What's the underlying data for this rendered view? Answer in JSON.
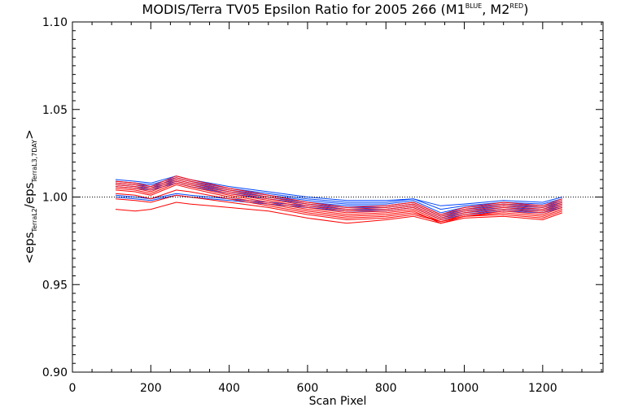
{
  "chart_data": {
    "type": "line",
    "title": {
      "main": "MODIS/Terra TV05 Epsilon Ratio for 2005 266 (M1",
      "sup1": "BLUE",
      "mid": ", M2",
      "sup2": "RED",
      "end": ")"
    },
    "xlabel": "Scan Pixel",
    "ylabel": {
      "open": "<eps",
      "sub1": "TerraL2",
      "slash": "/eps",
      "sub2": "TerraL3,7DAY",
      "close": ">"
    },
    "xlim": [
      0,
      1354
    ],
    "ylim": [
      0.9,
      1.1
    ],
    "xticks": [
      0,
      200,
      400,
      600,
      800,
      1000,
      1200
    ],
    "xtick_labels": [
      "0",
      "200",
      "400",
      "600",
      "800",
      "1000",
      "1200"
    ],
    "yticks": [
      0.9,
      0.95,
      1.0,
      1.05,
      1.1
    ],
    "ytick_labels": [
      "0.90",
      "0.95",
      "1.00",
      "1.05",
      "1.10"
    ],
    "reference_line": {
      "y": 1.0,
      "style": "dotted"
    },
    "grid": false,
    "legend": "none",
    "colors": {
      "M1": "#0044ff",
      "M2": "#ff0000"
    },
    "series": [
      {
        "color_key": "M1",
        "x": [
          110,
          160,
          200,
          265,
          300,
          400,
          500,
          600,
          700,
          800,
          870,
          940,
          1000,
          1100,
          1200,
          1250
        ],
        "y": [
          1.01,
          1.009,
          1.008,
          1.012,
          1.01,
          1.006,
          1.003,
          1.0,
          0.998,
          0.998,
          0.999,
          0.995,
          0.996,
          0.998,
          0.997,
          1.0
        ]
      },
      {
        "color_key": "M1",
        "x": [
          110,
          160,
          200,
          265,
          300,
          400,
          500,
          600,
          700,
          800,
          870,
          940,
          1000,
          1100,
          1200,
          1250
        ],
        "y": [
          1.009,
          1.008,
          1.007,
          1.011,
          1.009,
          1.005,
          1.002,
          0.999,
          0.997,
          0.997,
          0.999,
          0.993,
          0.995,
          0.997,
          0.996,
          0.999
        ]
      },
      {
        "color_key": "M1",
        "x": [
          110,
          160,
          200,
          265,
          300,
          400,
          500,
          600,
          700,
          800,
          870,
          940,
          1000,
          1100,
          1200,
          1250
        ],
        "y": [
          1.008,
          1.007,
          1.006,
          1.01,
          1.008,
          1.004,
          1.001,
          0.998,
          0.996,
          0.996,
          0.998,
          0.991,
          0.994,
          0.996,
          0.995,
          0.998
        ]
      },
      {
        "color_key": "M1",
        "x": [
          110,
          160,
          200,
          265,
          300,
          400,
          500,
          600,
          700,
          800,
          870,
          940,
          1000,
          1100,
          1200,
          1250
        ],
        "y": [
          1.007,
          1.006,
          1.005,
          1.009,
          1.007,
          1.003,
          1.0,
          0.997,
          0.995,
          0.995,
          0.997,
          0.99,
          0.993,
          0.995,
          0.994,
          0.997
        ]
      },
      {
        "color_key": "M1",
        "x": [
          110,
          160,
          200,
          265,
          300,
          400,
          500,
          600,
          700,
          800,
          870,
          940,
          1000,
          1100,
          1200,
          1250
        ],
        "y": [
          1.006,
          1.005,
          1.004,
          1.008,
          1.006,
          1.002,
          0.999,
          0.996,
          0.994,
          0.994,
          0.996,
          0.989,
          0.992,
          0.994,
          0.993,
          0.996
        ]
      },
      {
        "color_key": "M1",
        "x": [
          110,
          160,
          200,
          265,
          300,
          400,
          500,
          600,
          700,
          800,
          870,
          940,
          1000,
          1100,
          1200,
          1250
        ],
        "y": [
          1.001,
          1.0,
          0.999,
          1.002,
          1.001,
          0.999,
          0.997,
          0.995,
          0.993,
          0.993,
          0.995,
          0.988,
          0.991,
          0.993,
          0.992,
          0.995
        ]
      },
      {
        "color_key": "M1",
        "x": [
          110,
          160,
          200,
          265,
          300,
          400,
          500,
          600,
          700,
          800,
          870,
          940,
          1000,
          1100,
          1200,
          1250
        ],
        "y": [
          1.0,
          0.999,
          0.998,
          1.001,
          1.0,
          0.998,
          0.996,
          0.994,
          0.992,
          0.992,
          0.994,
          0.987,
          0.99,
          0.992,
          0.991,
          0.994
        ]
      },
      {
        "color_key": "M2",
        "x": [
          110,
          160,
          200,
          265,
          300,
          400,
          500,
          600,
          700,
          800,
          870,
          940,
          1000,
          1100,
          1200,
          1250
        ],
        "y": [
          1.009,
          1.008,
          1.006,
          1.012,
          1.01,
          1.005,
          1.001,
          0.997,
          0.994,
          0.995,
          0.997,
          0.99,
          0.994,
          0.997,
          0.995,
          0.999
        ]
      },
      {
        "color_key": "M2",
        "x": [
          110,
          160,
          200,
          265,
          300,
          400,
          500,
          600,
          700,
          800,
          870,
          940,
          1000,
          1100,
          1200,
          1250
        ],
        "y": [
          1.008,
          1.007,
          1.005,
          1.011,
          1.009,
          1.004,
          1.0,
          0.996,
          0.993,
          0.994,
          0.996,
          0.989,
          0.993,
          0.996,
          0.994,
          0.998
        ]
      },
      {
        "color_key": "M2",
        "x": [
          110,
          160,
          200,
          265,
          300,
          400,
          500,
          600,
          700,
          800,
          870,
          940,
          1000,
          1100,
          1200,
          1250
        ],
        "y": [
          1.007,
          1.006,
          1.004,
          1.01,
          1.008,
          1.003,
          0.999,
          0.995,
          0.992,
          0.993,
          0.995,
          0.988,
          0.992,
          0.995,
          0.993,
          0.997
        ]
      },
      {
        "color_key": "M2",
        "x": [
          110,
          160,
          200,
          265,
          300,
          400,
          500,
          600,
          700,
          800,
          870,
          940,
          1000,
          1100,
          1200,
          1250
        ],
        "y": [
          1.006,
          1.005,
          1.003,
          1.009,
          1.007,
          1.002,
          0.998,
          0.994,
          0.991,
          0.992,
          0.994,
          0.987,
          0.991,
          0.994,
          0.992,
          0.996
        ]
      },
      {
        "color_key": "M2",
        "x": [
          110,
          160,
          200,
          265,
          300,
          400,
          500,
          600,
          700,
          800,
          870,
          940,
          1000,
          1100,
          1200,
          1250
        ],
        "y": [
          1.005,
          1.004,
          1.002,
          1.008,
          1.006,
          1.001,
          0.997,
          0.993,
          0.99,
          0.991,
          0.993,
          0.986,
          0.99,
          0.993,
          0.991,
          0.995
        ]
      },
      {
        "color_key": "M2",
        "x": [
          110,
          160,
          200,
          265,
          300,
          400,
          500,
          600,
          700,
          800,
          870,
          940,
          1000,
          1100,
          1200,
          1250
        ],
        "y": [
          1.004,
          1.003,
          1.001,
          1.007,
          1.005,
          1.0,
          0.996,
          0.992,
          0.989,
          0.99,
          0.992,
          0.985,
          0.989,
          0.992,
          0.99,
          0.994
        ]
      },
      {
        "color_key": "M2",
        "x": [
          110,
          160,
          200,
          265,
          300,
          400,
          500,
          600,
          700,
          800,
          870,
          940,
          1000,
          1100,
          1200,
          1250
        ],
        "y": [
          1.002,
          1.001,
          0.999,
          1.004,
          1.003,
          0.999,
          0.995,
          0.991,
          0.988,
          0.989,
          0.991,
          0.986,
          0.989,
          0.991,
          0.989,
          0.993
        ]
      },
      {
        "color_key": "M2",
        "x": [
          110,
          160,
          200,
          265,
          300,
          400,
          500,
          600,
          700,
          800,
          870,
          940,
          1000,
          1100,
          1200,
          1250
        ],
        "y": [
          0.999,
          0.998,
          0.997,
          1.001,
          1.0,
          0.997,
          0.994,
          0.99,
          0.987,
          0.988,
          0.99,
          0.986,
          0.989,
          0.99,
          0.988,
          0.992
        ]
      },
      {
        "color_key": "M2",
        "x": [
          110,
          160,
          200,
          265,
          300,
          400,
          500,
          600,
          700,
          800,
          870,
          940,
          1000,
          1100,
          1200,
          1250
        ],
        "y": [
          0.993,
          0.992,
          0.993,
          0.997,
          0.996,
          0.994,
          0.992,
          0.988,
          0.985,
          0.987,
          0.989,
          0.985,
          0.988,
          0.989,
          0.987,
          0.991
        ]
      }
    ]
  }
}
